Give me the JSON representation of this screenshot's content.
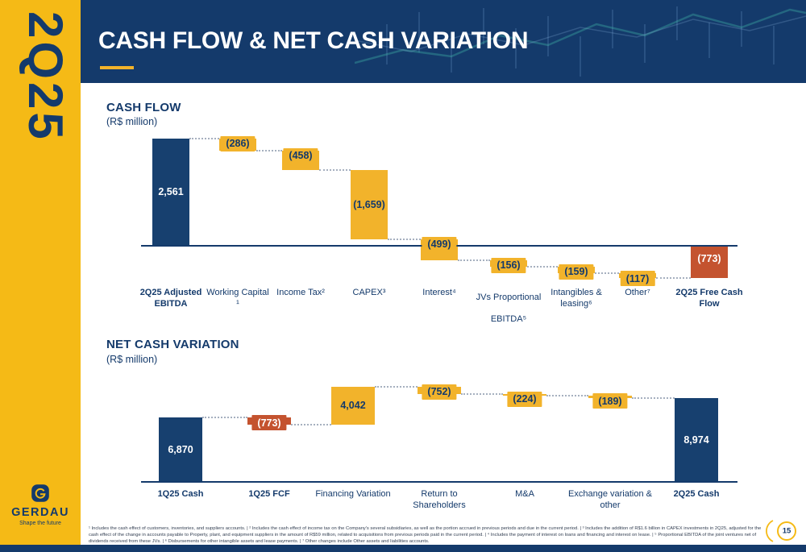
{
  "header": {
    "title": "CASH FLOW & NET CASH VARIATION"
  },
  "sidebar": {
    "period": "2Q25",
    "brand": "GERDAU",
    "tagline": "Shape the future"
  },
  "sections": {
    "cash_flow": {
      "title": "CASH FLOW",
      "subtitle": "(R$ million)"
    },
    "net_cash": {
      "title": "NET CASH VARIATION",
      "subtitle": "(R$ million)"
    }
  },
  "chart_data": [
    {
      "type": "waterfall",
      "title": "CASH FLOW",
      "unit": "R$ million",
      "items": [
        {
          "category": "2Q25 Adjusted EBITDA",
          "label": "2,561",
          "value": 2561,
          "role": "total",
          "bold": true
        },
        {
          "category": "Working Capital ¹",
          "label": "(286)",
          "value": -286,
          "role": "decrease"
        },
        {
          "category": "Income Tax²",
          "label": "(458)",
          "value": -458,
          "role": "decrease"
        },
        {
          "category": "CAPEX³",
          "label": "(1,659)",
          "value": -1659,
          "role": "decrease",
          "label_inside": true
        },
        {
          "category": "Interest⁴",
          "label": "(499)",
          "value": -499,
          "role": "decrease"
        },
        {
          "category": "JVs Proportional EBITDA⁵",
          "label": "(156)",
          "value": -156,
          "role": "decrease",
          "tall": true
        },
        {
          "category": "Intangibles & leasing⁶",
          "label": "(159)",
          "value": -159,
          "role": "decrease"
        },
        {
          "category": "Other⁷",
          "label": "(117)",
          "value": -117,
          "role": "decrease"
        },
        {
          "category": "2Q25 Free Cash Flow",
          "label": "(773)",
          "value": -773,
          "role": "fcf_total",
          "bold": true
        }
      ]
    },
    {
      "type": "waterfall",
      "title": "NET CASH VARIATION",
      "unit": "R$ million",
      "items": [
        {
          "category": "1Q25 Cash",
          "label": "6,870",
          "value": 6870,
          "role": "total",
          "bold": true
        },
        {
          "category": "1Q25 FCF",
          "label": "(773)",
          "value": -773,
          "role": "fcf_delta",
          "bold": true
        },
        {
          "category": "Financing Variation",
          "label": "4,042",
          "value": 4042,
          "role": "increase",
          "label_inside": true
        },
        {
          "category": "Return to Shareholders",
          "label": "(752)",
          "value": -752,
          "role": "decrease"
        },
        {
          "category": "M&A",
          "label": "(224)",
          "value": -224,
          "role": "decrease"
        },
        {
          "category": "Exchange variation & other",
          "label": "(189)",
          "value": -189,
          "role": "decrease"
        },
        {
          "category": "2Q25 Cash",
          "label": "8,974",
          "value": 8974,
          "role": "total",
          "bold": true
        }
      ]
    }
  ],
  "footnotes": "¹ Includes the cash effect of customers, inventories, and suppliers accounts. | ² Includes the cash effect of income tax on the Company's several subsidiaries, as well as the portion accrued in previous periods and due in the current period. | ³ Includes the addition of R$1.6 billion in CAPEX investments in 2Q25, adjusted for the cash effect of the change in accounts payable to Property, plant, and equipment suppliers in the amount of R$59 million, related to acquisitions from previous periods paid in the current period. | ⁴ Includes the payment of interest on loans and financing and interest on lease. | ⁵ Proportional EBITDA of the joint ventures net of dividends received from these JVs. | ⁶ Disbursements for other intangible assets and lease payments. | ⁷ Other changes include Other assets and liabilities accounts.",
  "page_number": "15",
  "colors": {
    "navy": "#143A6B",
    "bar-navy": "#17406F",
    "header": "#143A6B",
    "yellow": "#F2B32B",
    "sidebar-yellow": "#F5BA16",
    "red": "#C4532F"
  }
}
